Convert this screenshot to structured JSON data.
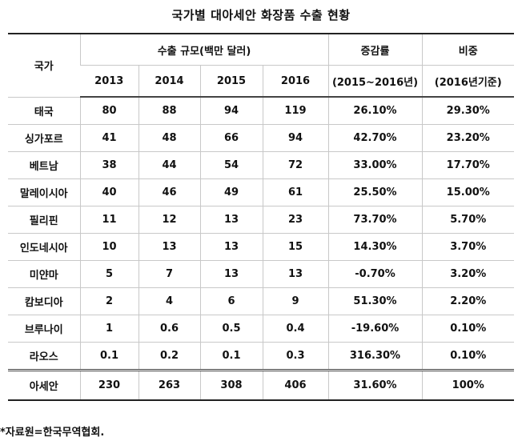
{
  "title": "국가별 대아세안 화장품 수출 현황",
  "header": {
    "country": "국가",
    "export_scale": "수출 규모(백만 달러)",
    "growth": "증감률",
    "share": "비중",
    "years": [
      "2013",
      "2014",
      "2015",
      "2016"
    ],
    "growth_period": "(2015~2016년)",
    "share_basis": "(2016년기준)"
  },
  "rows": [
    {
      "country": "태국",
      "y2013": "80",
      "y2014": "88",
      "y2015": "94",
      "y2016": "119",
      "growth": "26.10%",
      "share": "29.30%"
    },
    {
      "country": "싱가포르",
      "y2013": "41",
      "y2014": "48",
      "y2015": "66",
      "y2016": "94",
      "growth": "42.70%",
      "share": "23.20%"
    },
    {
      "country": "베트남",
      "y2013": "38",
      "y2014": "44",
      "y2015": "54",
      "y2016": "72",
      "growth": "33.00%",
      "share": "17.70%"
    },
    {
      "country": "말레이시아",
      "y2013": "40",
      "y2014": "46",
      "y2015": "49",
      "y2016": "61",
      "growth": "25.50%",
      "share": "15.00%"
    },
    {
      "country": "필리핀",
      "y2013": "11",
      "y2014": "12",
      "y2015": "13",
      "y2016": "23",
      "growth": "73.70%",
      "share": "5.70%"
    },
    {
      "country": "인도네시아",
      "y2013": "10",
      "y2014": "13",
      "y2015": "13",
      "y2016": "15",
      "growth": "14.30%",
      "share": "3.70%"
    },
    {
      "country": "미얀마",
      "y2013": "5",
      "y2014": "7",
      "y2015": "13",
      "y2016": "13",
      "growth": "-0.70%",
      "share": "3.20%"
    },
    {
      "country": "캄보디아",
      "y2013": "2",
      "y2014": "4",
      "y2015": "6",
      "y2016": "9",
      "growth": "51.30%",
      "share": "2.20%"
    },
    {
      "country": "브루나이",
      "y2013": "1",
      "y2014": "0.6",
      "y2015": "0.5",
      "y2016": "0.4",
      "growth": "-19.60%",
      "share": "0.10%"
    },
    {
      "country": "라오스",
      "y2013": "0.1",
      "y2014": "0.2",
      "y2015": "0.1",
      "y2016": "0.3",
      "growth": "316.30%",
      "share": "0.10%"
    }
  ],
  "total": {
    "country": "아세안",
    "y2013": "230",
    "y2014": "263",
    "y2015": "308",
    "y2016": "406",
    "growth": "31.60%",
    "share": "100%"
  },
  "source": "*자료원=한국무역협회."
}
